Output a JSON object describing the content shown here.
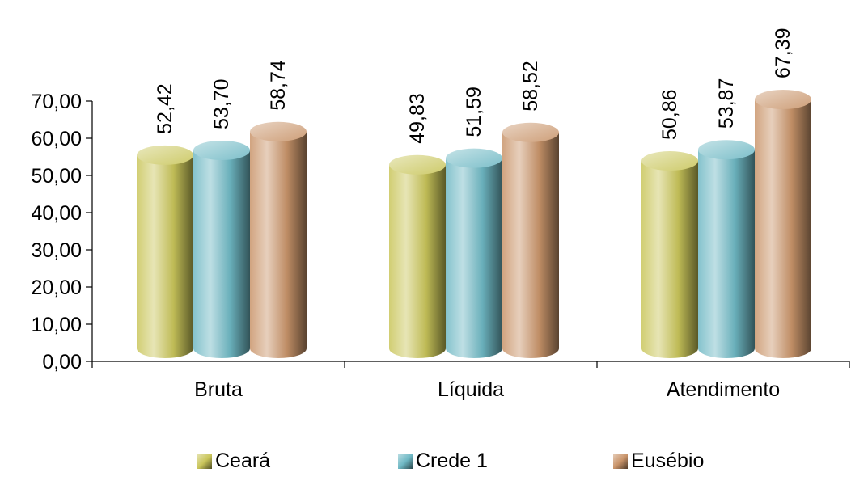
{
  "chart_data": {
    "type": "bar",
    "categories": [
      "Bruta",
      "Líquida",
      "Atendimento"
    ],
    "series": [
      {
        "name": "Ceará",
        "values": [
          52.42,
          49.83,
          50.86
        ],
        "labels": [
          "52,42",
          "49,83",
          "50,86"
        ],
        "color": "#c9c55a"
      },
      {
        "name": "Crede 1",
        "values": [
          53.7,
          51.59,
          53.87
        ],
        "labels": [
          "53,70",
          "51,59",
          "53,87"
        ],
        "color": "#6fb8c4"
      },
      {
        "name": "Eusébio",
        "values": [
          58.74,
          58.52,
          67.39
        ],
        "labels": [
          "58,74",
          "58,52",
          "67,39"
        ],
        "color": "#c9946a"
      }
    ],
    "yticks": [
      "0,00",
      "10,00",
      "20,00",
      "30,00",
      "40,00",
      "50,00",
      "60,00",
      "70,00"
    ],
    "ylim": [
      0,
      70
    ],
    "grid": false,
    "legend": "bottom"
  }
}
